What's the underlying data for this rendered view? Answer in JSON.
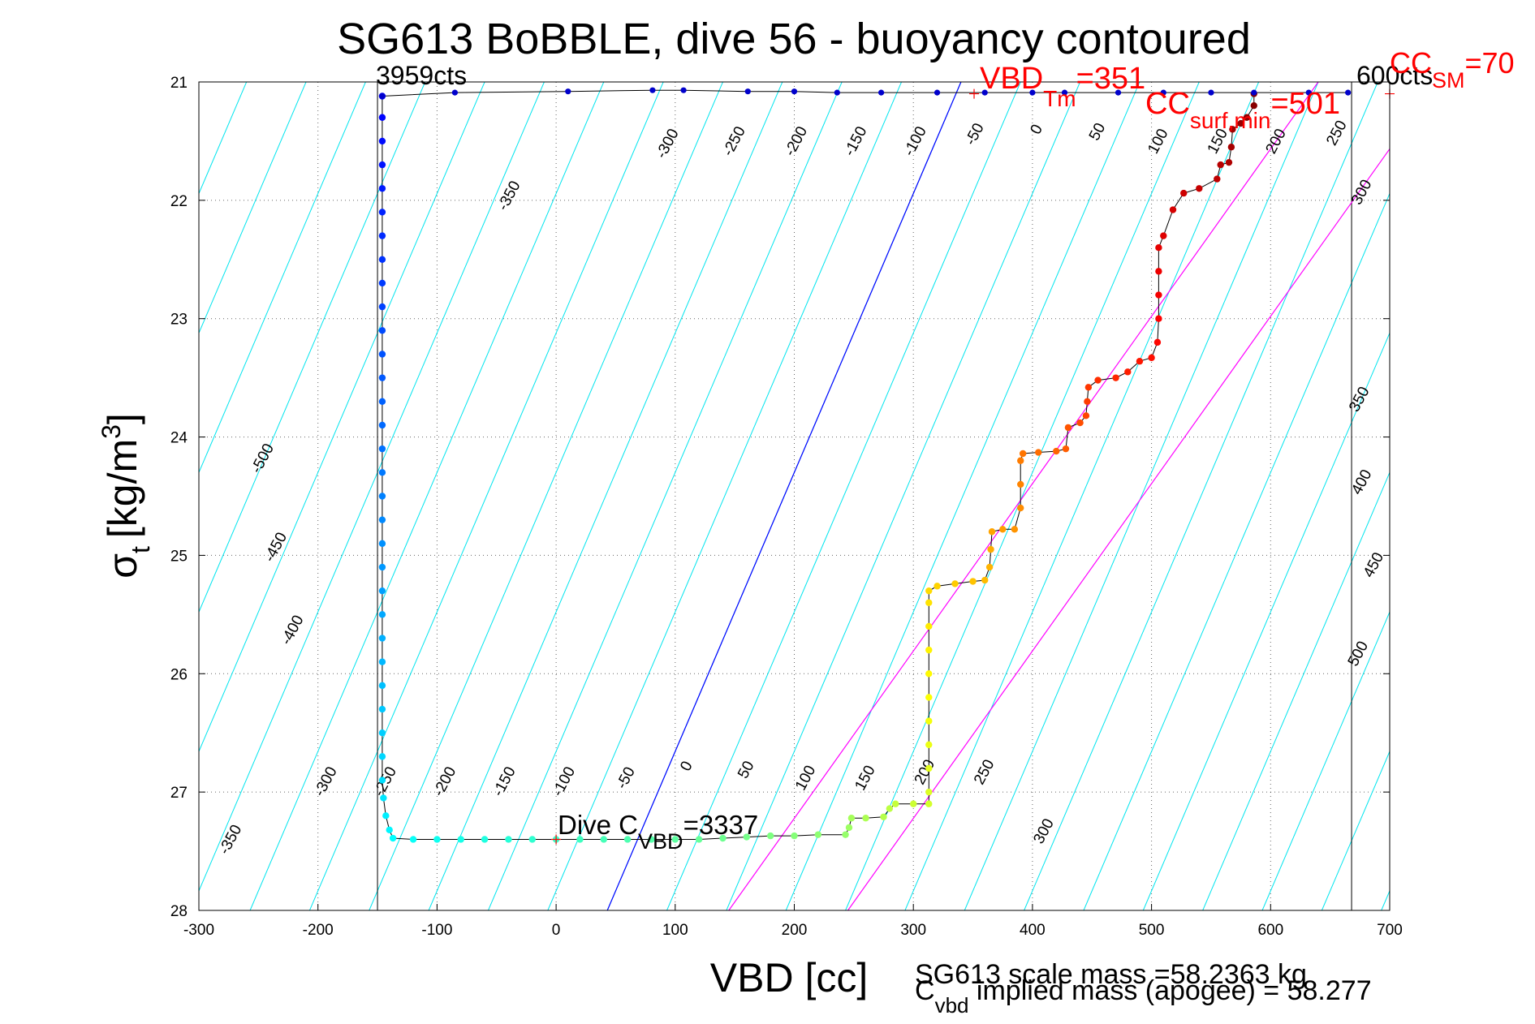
{
  "chart_data": {
    "type": "scatter",
    "title": "SG613 BoBBLE, dive 56 - buoyancy contoured",
    "xlabel": "VBD [cc]",
    "ylabel_main": "σ",
    "ylabel_sub": "t",
    "ylabel_units": "[kg/m",
    "ylabel_sup": "3",
    "ylabel_close": "]",
    "xlim": [
      -300,
      700
    ],
    "ylim": [
      21,
      28
    ],
    "y_reversed": true,
    "xticks": [
      -300,
      -200,
      -100,
      0,
      100,
      200,
      300,
      400,
      500,
      600,
      700
    ],
    "yticks": [
      21,
      22,
      23,
      24,
      25,
      26,
      27,
      28
    ],
    "grid": true,
    "annotations": {
      "min_cts": "3959cts",
      "max_cts": "600cts",
      "vbd_tm_main": "VBD",
      "vbd_tm_sub": "Tm",
      "vbd_tm_val": "=351",
      "cc_surf_main": "CC",
      "cc_surf_sub": "surf,min",
      "cc_surf_val": "=501",
      "cc_sm_main": "CC",
      "cc_sm_sub": "SM",
      "cc_sm_val": "=70",
      "dive_c_main": "Dive C",
      "dive_c_sub": "VBD",
      "dive_c_val": "=3337",
      "scale_mass": "SG613 scale mass =58.2363 kg",
      "implied_main": "C",
      "implied_sub": "vbd",
      "implied_rest": " implied mass (apogee) = 58.277"
    },
    "reference_lines": {
      "vbd_min": -150,
      "vbd_max": 668,
      "zero_buoyancy": {
        "x_at_21": 340,
        "x_at_28": 43,
        "color": "#0000ff"
      },
      "surf_min_line": {
        "x_at_21": 640,
        "x_at_28": 145,
        "color": "#ff00ff"
      },
      "sm_line": {
        "x_at_21": 740,
        "x_at_28": 245,
        "color": "#ff00ff"
      }
    },
    "contour_labels": [
      {
        "text": "-350",
        "x": -36,
        "y": 21.98
      },
      {
        "text": "-300",
        "x": 97,
        "y": 21.54
      },
      {
        "text": "-250",
        "x": 153,
        "y": 21.52
      },
      {
        "text": "-200",
        "x": 205,
        "y": 21.52
      },
      {
        "text": "-150",
        "x": 255,
        "y": 21.52
      },
      {
        "text": "-100",
        "x": 305,
        "y": 21.52
      },
      {
        "text": "-50",
        "x": 355,
        "y": 21.46
      },
      {
        "text": "0",
        "x": 407,
        "y": 21.42
      },
      {
        "text": "50",
        "x": 458,
        "y": 21.44
      },
      {
        "text": "100",
        "x": 509,
        "y": 21.52
      },
      {
        "text": "150",
        "x": 559,
        "y": 21.52
      },
      {
        "text": "200",
        "x": 608,
        "y": 21.52
      },
      {
        "text": "250",
        "x": 659,
        "y": 21.45
      },
      {
        "text": "300",
        "x": 680,
        "y": 21.95
      },
      {
        "text": "350",
        "x": 678,
        "y": 23.7
      },
      {
        "text": "400",
        "x": 680,
        "y": 24.4
      },
      {
        "text": "450",
        "x": 690,
        "y": 25.1
      },
      {
        "text": "500",
        "x": 677,
        "y": 25.85
      },
      {
        "text": "-500",
        "x": -243,
        "y": 24.2
      },
      {
        "text": "-450",
        "x": -232,
        "y": 24.95
      },
      {
        "text": "-400",
        "x": -218,
        "y": 25.65
      },
      {
        "text": "-300",
        "x": -190,
        "y": 26.93
      },
      {
        "text": "-250",
        "x": -140,
        "y": 26.93
      },
      {
        "text": "-200",
        "x": -90,
        "y": 26.93
      },
      {
        "text": "-150",
        "x": -40,
        "y": 26.93
      },
      {
        "text": "-100",
        "x": 10,
        "y": 26.93
      },
      {
        "text": "-50",
        "x": 62,
        "y": 26.9
      },
      {
        "text": "0",
        "x": 113,
        "y": 26.8
      },
      {
        "text": "50",
        "x": 163,
        "y": 26.83
      },
      {
        "text": "100",
        "x": 213,
        "y": 26.9
      },
      {
        "text": "150",
        "x": 263,
        "y": 26.9
      },
      {
        "text": "200",
        "x": 313,
        "y": 26.85
      },
      {
        "text": "250",
        "x": 363,
        "y": 26.85
      },
      {
        "text": "300",
        "x": 413,
        "y": 27.35
      },
      {
        "text": "-350",
        "x": -270,
        "y": 27.42
      }
    ],
    "series": [
      {
        "name": "dive",
        "description": "VBD vs sigma_t along dive, colored by depth",
        "points": [
          [
            -146,
            21.12
          ],
          [
            -146,
            21.3
          ],
          [
            -146,
            21.5
          ],
          [
            -146,
            21.7
          ],
          [
            -146,
            21.9
          ],
          [
            -146,
            22.1
          ],
          [
            -146,
            22.3
          ],
          [
            -146,
            22.5
          ],
          [
            -146,
            22.7
          ],
          [
            -146,
            22.9
          ],
          [
            -146,
            23.1
          ],
          [
            -146,
            23.3
          ],
          [
            -146,
            23.5
          ],
          [
            -146,
            23.7
          ],
          [
            -146,
            23.9
          ],
          [
            -146,
            24.1
          ],
          [
            -146,
            24.3
          ],
          [
            -146,
            24.5
          ],
          [
            -146,
            24.7
          ],
          [
            -146,
            24.9
          ],
          [
            -146,
            25.1
          ],
          [
            -146,
            25.3
          ],
          [
            -146,
            25.5
          ],
          [
            -146,
            25.7
          ],
          [
            -146,
            25.9
          ],
          [
            -146,
            26.1
          ],
          [
            -146,
            26.3
          ],
          [
            -146,
            26.5
          ],
          [
            -146,
            26.7
          ],
          [
            -146,
            26.9
          ],
          [
            -145,
            27.05
          ],
          [
            -143,
            27.2
          ],
          [
            -140,
            27.32
          ],
          [
            -137,
            27.39
          ],
          [
            -120,
            27.4
          ],
          [
            -100,
            27.4
          ],
          [
            -80,
            27.4
          ],
          [
            -60,
            27.4
          ],
          [
            -40,
            27.4
          ],
          [
            -20,
            27.4
          ],
          [
            0,
            27.4
          ],
          [
            20,
            27.4
          ],
          [
            40,
            27.4
          ],
          [
            60,
            27.4
          ],
          [
            80,
            27.4
          ],
          [
            100,
            27.4
          ],
          [
            120,
            27.4
          ],
          [
            140,
            27.39
          ],
          [
            160,
            27.38
          ],
          [
            180,
            27.37
          ],
          [
            200,
            27.37
          ],
          [
            220,
            27.36
          ],
          [
            243,
            27.36
          ],
          [
            246,
            27.3
          ],
          [
            248,
            27.22
          ],
          [
            260,
            27.22
          ],
          [
            275,
            27.21
          ],
          [
            280,
            27.14
          ],
          [
            285,
            27.1
          ],
          [
            300,
            27.1
          ],
          [
            313,
            27.1
          ],
          [
            313,
            27.0
          ],
          [
            313,
            26.8
          ],
          [
            313,
            26.6
          ],
          [
            313,
            26.4
          ],
          [
            313,
            26.2
          ],
          [
            313,
            26.0
          ],
          [
            313,
            25.8
          ],
          [
            313,
            25.6
          ],
          [
            313,
            25.4
          ],
          [
            313,
            25.3
          ],
          [
            320,
            25.26
          ],
          [
            335,
            25.24
          ],
          [
            350,
            25.22
          ],
          [
            360,
            25.21
          ],
          [
            364,
            25.1
          ],
          [
            365,
            24.95
          ],
          [
            366,
            24.8
          ],
          [
            375,
            24.78
          ],
          [
            385,
            24.78
          ],
          [
            390,
            24.6
          ],
          [
            390,
            24.4
          ],
          [
            390,
            24.2
          ],
          [
            392,
            24.14
          ],
          [
            405,
            24.13
          ],
          [
            420,
            24.12
          ],
          [
            428,
            24.1
          ],
          [
            430,
            23.92
          ],
          [
            440,
            23.88
          ],
          [
            445,
            23.82
          ],
          [
            446,
            23.7
          ],
          [
            447,
            23.58
          ],
          [
            455,
            23.52
          ],
          [
            470,
            23.5
          ],
          [
            480,
            23.45
          ],
          [
            490,
            23.36
          ],
          [
            500,
            23.33
          ],
          [
            505,
            23.2
          ],
          [
            506,
            23.0
          ],
          [
            506,
            22.8
          ],
          [
            506,
            22.6
          ],
          [
            506,
            22.4
          ],
          [
            510,
            22.3
          ],
          [
            518,
            22.08
          ],
          [
            527,
            21.94
          ],
          [
            540,
            21.9
          ],
          [
            555,
            21.82
          ],
          [
            558,
            21.7
          ],
          [
            565,
            21.68
          ],
          [
            567,
            21.55
          ],
          [
            568,
            21.4
          ],
          [
            575,
            21.35
          ],
          [
            580,
            21.3
          ],
          [
            586,
            21.2
          ],
          [
            586,
            21.1
          ]
        ]
      },
      {
        "name": "climb_surface",
        "description": "Near-surface points along top",
        "points": [
          [
            -146,
            21.12
          ],
          [
            -85,
            21.09
          ],
          [
            10,
            21.08
          ],
          [
            81,
            21.07
          ],
          [
            107,
            21.07
          ],
          [
            161,
            21.08
          ],
          [
            200,
            21.08
          ],
          [
            236,
            21.09
          ],
          [
            273,
            21.09
          ],
          [
            320,
            21.09
          ],
          [
            360,
            21.09
          ],
          [
            400,
            21.09
          ],
          [
            427,
            21.09
          ],
          [
            472,
            21.09
          ],
          [
            510,
            21.09
          ],
          [
            550,
            21.09
          ],
          [
            586,
            21.09
          ],
          [
            632,
            21.09
          ],
          [
            665,
            21.09
          ]
        ]
      }
    ]
  }
}
